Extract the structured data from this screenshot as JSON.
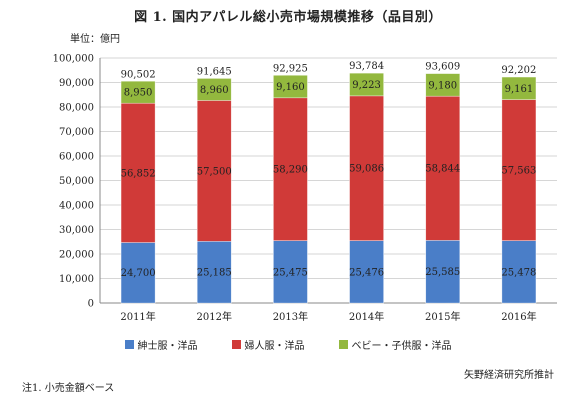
{
  "title": "図 1. 国内アパレル総小売市場規模推移（品目別）",
  "unit": "単位：億円",
  "footnote": "注1. 小売金額ベース",
  "source": "矢野経済研究所推計",
  "colors": {
    "mens": "#4a7ec8",
    "womens": "#d03a38",
    "kids": "#93b83e",
    "axis": "#888888",
    "grid": "#d6d6d6"
  },
  "chart_data": {
    "type": "bar",
    "stacked": true,
    "categories": [
      "2011年",
      "2012年",
      "2013年",
      "2014年",
      "2015年",
      "2016年"
    ],
    "series": [
      {
        "name": "紳士服・洋品",
        "values": [
          24700,
          25185,
          25475,
          25476,
          25585,
          25478
        ]
      },
      {
        "name": "婦人服・洋品",
        "values": [
          56852,
          57500,
          58290,
          59086,
          58844,
          57563
        ]
      },
      {
        "name": "ベビー・子供服・洋品",
        "values": [
          8950,
          8960,
          9160,
          9223,
          9180,
          9161
        ]
      }
    ],
    "totals": [
      90502,
      91645,
      92925,
      93784,
      93609,
      92202
    ],
    "ylim": [
      0,
      100000
    ],
    "yticks": [
      0,
      10000,
      20000,
      30000,
      40000,
      50000,
      60000,
      70000,
      80000,
      90000,
      100000
    ],
    "grid": true,
    "legend": "bottom",
    "xlabel": "",
    "ylabel": ""
  }
}
